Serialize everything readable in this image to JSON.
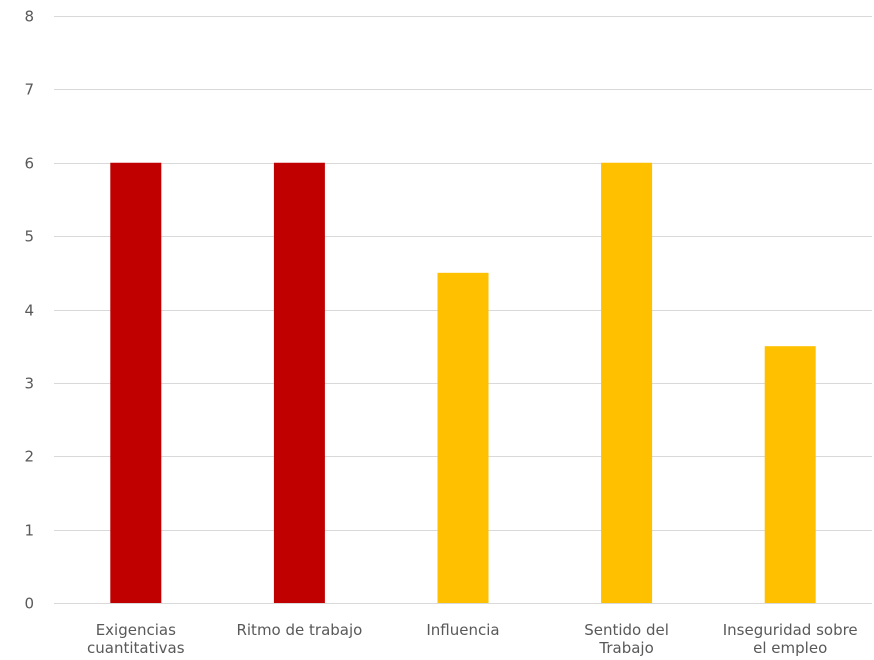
{
  "chart_data": {
    "type": "bar",
    "categories": [
      [
        "Exigencias",
        "cuantitativas"
      ],
      [
        "Ritmo de trabajo"
      ],
      [
        "Influencia"
      ],
      [
        "Sentido del",
        "Trabajo"
      ],
      [
        "Inseguridad sobre",
        "el empleo"
      ]
    ],
    "values": [
      6,
      6,
      4.5,
      6,
      3.5
    ],
    "bar_colors": [
      "#c00000",
      "#c00000",
      "#ffc000",
      "#ffc000",
      "#ffc000"
    ],
    "ylim": [
      0,
      8
    ],
    "yticks": [
      0,
      1,
      2,
      3,
      4,
      5,
      6,
      7,
      8
    ],
    "grid": true,
    "title": "",
    "xlabel": "",
    "ylabel": ""
  }
}
